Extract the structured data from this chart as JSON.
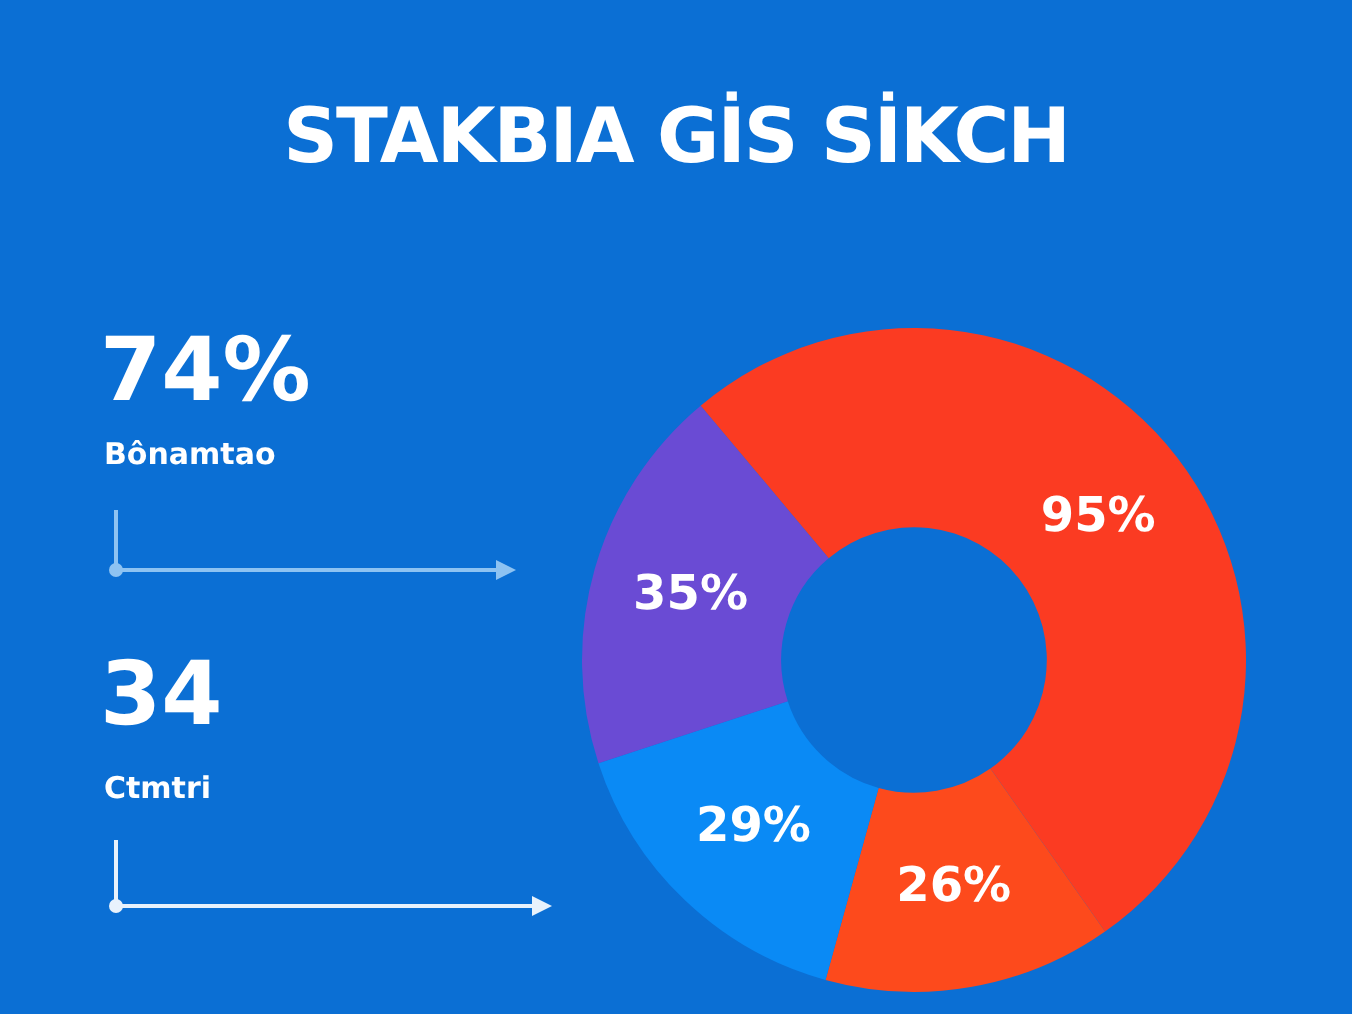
{
  "chart_data": {
    "type": "donut",
    "title": "STAKBIA GİS SİKCH",
    "categories": [
      null,
      null,
      null,
      null
    ],
    "values": [
      95,
      26,
      29,
      35
    ],
    "colors": [
      "#fb3b22",
      "#fd4a1c",
      "#0a8af5",
      "#6a4bd4"
    ],
    "value_labels": [
      "95%",
      "26%",
      "29%",
      "35%"
    ],
    "legend": false,
    "annotations": [
      "74%",
      "Bônamtao",
      "34",
      "Ctmtri"
    ]
  }
}
